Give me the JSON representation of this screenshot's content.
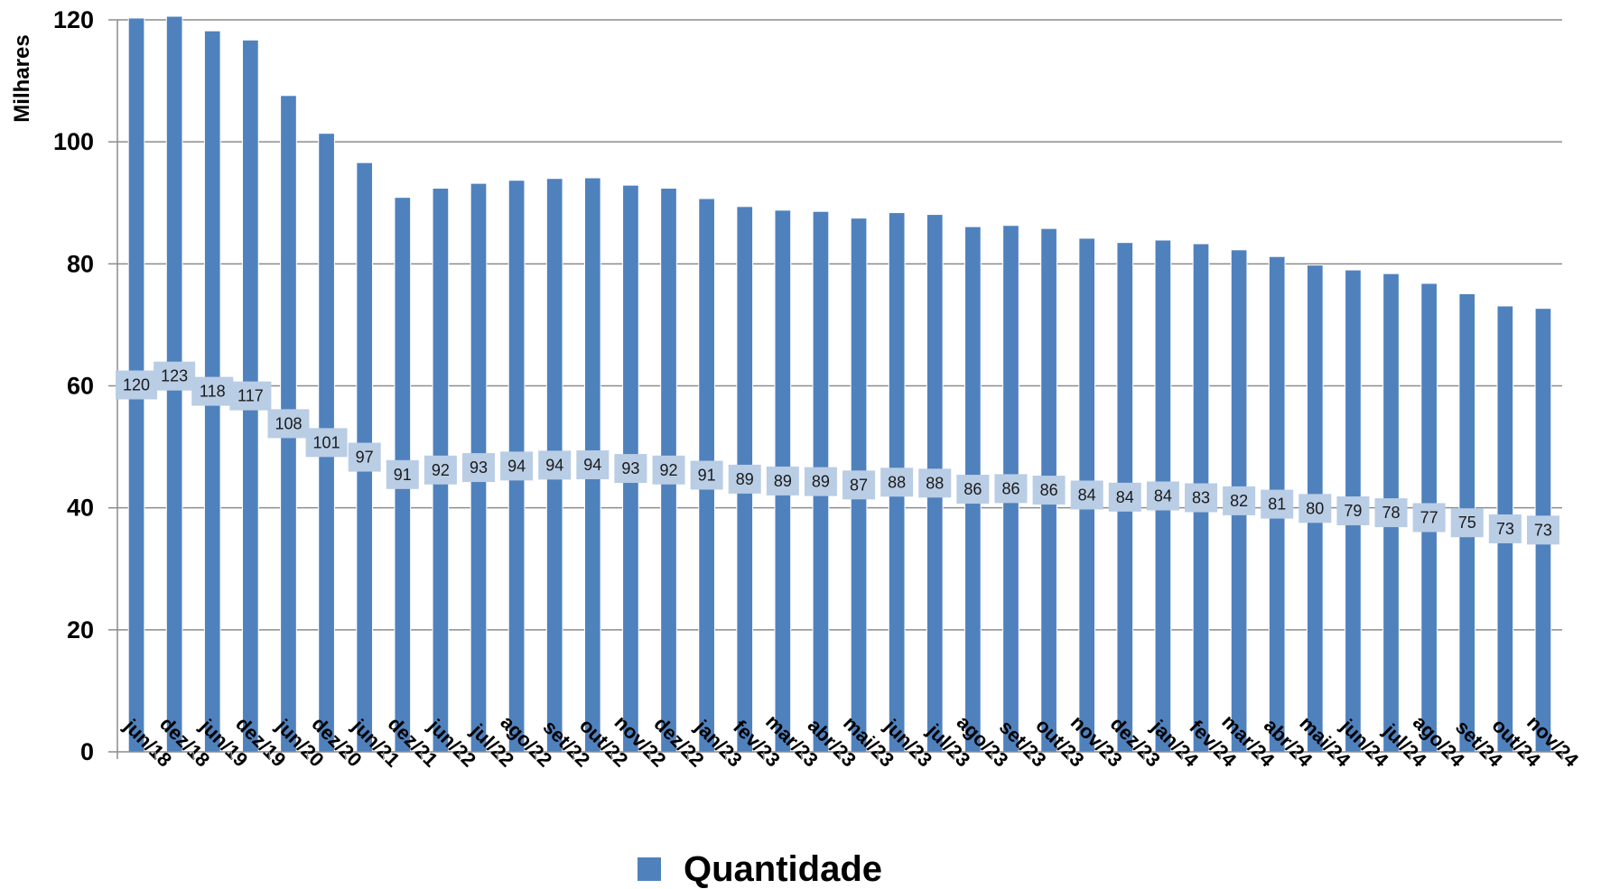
{
  "chart_data": {
    "type": "bar",
    "title": "",
    "xlabel": "",
    "ylabel": "Milhares",
    "ylim": [
      0,
      120
    ],
    "yticks": [
      "0",
      "20",
      "40",
      "60",
      "80",
      "100",
      "120"
    ],
    "grid": true,
    "legend_position": "bottom",
    "categories": [
      "jun/18",
      "dez/18",
      "jun/19",
      "dez/19",
      "jun/20",
      "dez/20",
      "jun/21",
      "dez/21",
      "jun/22",
      "jul/22",
      "ago/22",
      "set/22",
      "out/22",
      "nov/22",
      "dez/22",
      "jan/23",
      "fev/23",
      "mar/23",
      "abr/23",
      "mai/23",
      "jun/23",
      "jul/23",
      "ago/23",
      "set/23",
      "out/23",
      "nov/23",
      "dez/23",
      "jan/24",
      "fev/24",
      "mar/24",
      "abr/24",
      "mai/24",
      "jun/24",
      "jul/24",
      "ago/24",
      "set/24",
      "out/24",
      "nov/24"
    ],
    "series": [
      {
        "name": "Quantidade",
        "color": "#4f81bd",
        "values": [
          120.3,
          123.2,
          118.2,
          116.7,
          107.6,
          101.4,
          96.6,
          90.9,
          92.4,
          93.2,
          93.7,
          94.0,
          94.1,
          92.9,
          92.4,
          90.7,
          89.4,
          88.8,
          88.6,
          87.5,
          88.4,
          88.1,
          86.1,
          86.3,
          85.8,
          84.2,
          83.5,
          83.9,
          83.3,
          82.3,
          81.2,
          79.8,
          79.0,
          78.4,
          76.8,
          75.1,
          73.1,
          72.7
        ],
        "labels": [
          "120",
          "123",
          "118",
          "117",
          "108",
          "101",
          "97",
          "91",
          "92",
          "93",
          "94",
          "94",
          "94",
          "93",
          "92",
          "91",
          "89",
          "89",
          "89",
          "87",
          "88",
          "88",
          "86",
          "86",
          "86",
          "84",
          "84",
          "84",
          "83",
          "82",
          "81",
          "80",
          "79",
          "78",
          "77",
          "75",
          "73",
          "73"
        ]
      }
    ]
  },
  "colors": {
    "bar": "#4f81bd",
    "bar_edge": "#ffffff",
    "label_box": "#b9cde5",
    "gridline": "#8c8c8c"
  }
}
